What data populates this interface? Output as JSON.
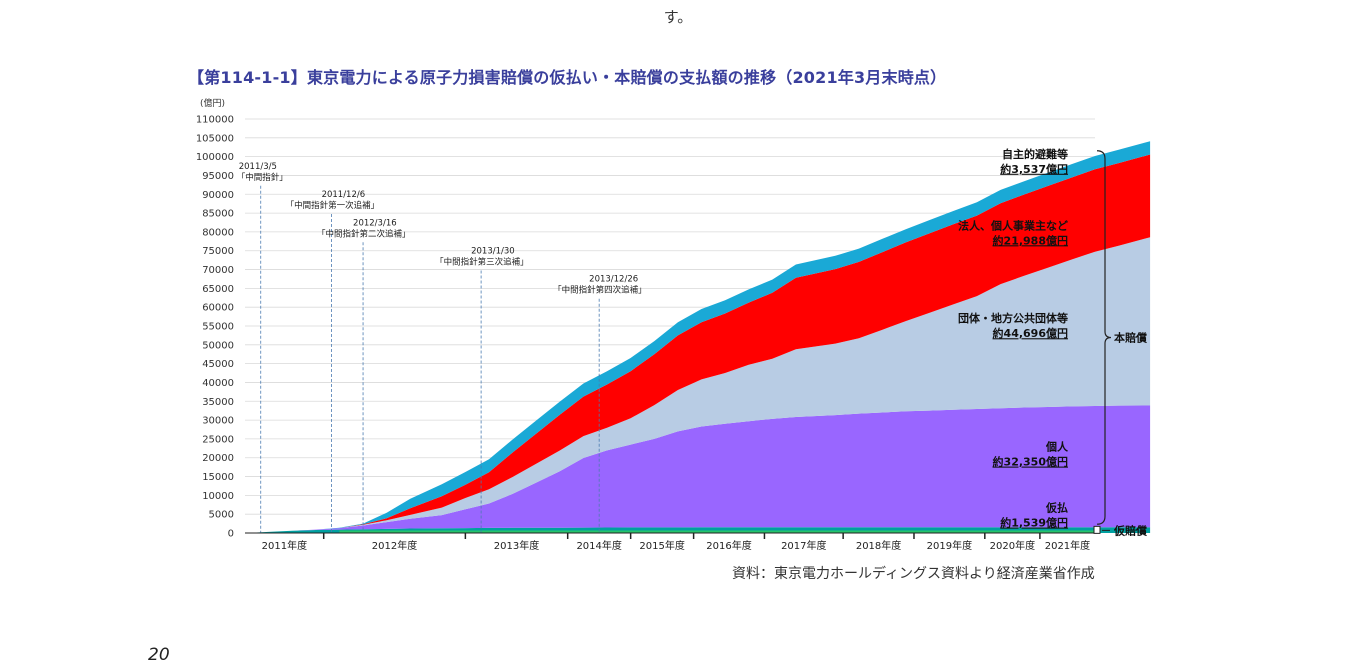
{
  "page": {
    "top_text": "す。",
    "figure_title": "【第114-1-1】東京電力による原子力損害賠償の仮払い・本賠償の支払額の推移（2021年3月末時点）",
    "source": "資料：東京電力ホールディングス資料より経済産業省作成",
    "page_number": "20"
  },
  "chart_data": {
    "type": "area",
    "stacked": true,
    "unit_label": "(億円)",
    "ylim": [
      0,
      110000
    ],
    "y_ticks": [
      0,
      5000,
      10000,
      15000,
      20000,
      25000,
      30000,
      35000,
      40000,
      45000,
      50000,
      55000,
      60000,
      65000,
      70000,
      75000,
      80000,
      85000,
      90000,
      95000,
      100000,
      105000,
      110000
    ],
    "x_periods": [
      {
        "label": "2011年度",
        "weight": 1.0
      },
      {
        "label": "2012年度",
        "weight": 1.8
      },
      {
        "label": "2013年度",
        "weight": 1.3
      },
      {
        "label": "2014年度",
        "weight": 0.8
      },
      {
        "label": "2015年度",
        "weight": 0.8
      },
      {
        "label": "2016年度",
        "weight": 0.9
      },
      {
        "label": "2017年度",
        "weight": 1.0
      },
      {
        "label": "2018年度",
        "weight": 0.9
      },
      {
        "label": "2019年度",
        "weight": 0.9
      },
      {
        "label": "2020年度",
        "weight": 0.7
      },
      {
        "label": "2021年度",
        "weight": 0.7
      }
    ],
    "x_points": [
      0,
      0.3,
      0.6,
      0.9,
      1.2,
      1.5,
      1.8,
      2.1,
      2.5,
      2.8,
      3.1,
      3.4,
      3.7,
      4.0,
      4.3,
      4.6,
      4.9,
      5.2,
      5.5,
      5.8,
      6.1,
      6.4,
      6.7,
      7.0,
      7.5,
      7.8,
      8.1,
      8.4,
      8.7,
      9.0,
      9.3,
      9.6,
      9.9,
      10.2,
      10.5,
      10.8,
      11.1,
      11.5
    ],
    "series": [
      {
        "name": "仮払",
        "color": "#00a0a0",
        "values": [
          0,
          300,
          600,
          800,
          900,
          1000,
          1100,
          1200,
          1250,
          1300,
          1350,
          1380,
          1400,
          1420,
          1440,
          1460,
          1480,
          1490,
          1500,
          1505,
          1510,
          1515,
          1520,
          1522,
          1525,
          1527,
          1529,
          1530,
          1532,
          1534,
          1535,
          1536,
          1537,
          1538,
          1539,
          1539,
          1539,
          1539
        ]
      },
      {
        "name": "個人",
        "color": "#9966ff",
        "values": [
          0,
          0,
          0,
          100,
          400,
          1000,
          1800,
          2600,
          3500,
          5000,
          6500,
          9000,
          12000,
          15000,
          18500,
          20500,
          22000,
          23500,
          25500,
          26800,
          27500,
          28200,
          28800,
          29300,
          29800,
          30200,
          30500,
          30800,
          31000,
          31200,
          31400,
          31600,
          31800,
          31950,
          32100,
          32200,
          32300,
          32350
        ]
      },
      {
        "name": "団体・地方公共団体等",
        "color": "#b8cce4",
        "values": [
          0,
          0,
          0,
          0,
          0,
          200,
          500,
          1000,
          2000,
          3000,
          3800,
          4500,
          5000,
          5500,
          5800,
          6000,
          7000,
          9000,
          11000,
          12500,
          13500,
          15000,
          16000,
          18000,
          19000,
          20000,
          22000,
          24000,
          26000,
          28000,
          30000,
          33000,
          35000,
          37000,
          39000,
          41000,
          42500,
          44696
        ]
      },
      {
        "name": "法人、個人事業主など",
        "color": "#ff0000",
        "values": [
          0,
          0,
          0,
          0,
          0,
          100,
          500,
          1800,
          3000,
          3500,
          4500,
          6500,
          8000,
          9500,
          10500,
          11500,
          12500,
          13500,
          14500,
          15200,
          15800,
          16500,
          17500,
          19000,
          19800,
          20300,
          20600,
          20900,
          21100,
          21300,
          21400,
          21500,
          21600,
          21700,
          21800,
          21900,
          21950,
          21988
        ]
      },
      {
        "name": "自主的避難等",
        "color": "#1aa9d6",
        "values": [
          0,
          0,
          0,
          0,
          100,
          200,
          1500,
          2500,
          3200,
          3400,
          3450,
          3470,
          3480,
          3490,
          3495,
          3500,
          3505,
          3510,
          3512,
          3514,
          3516,
          3518,
          3520,
          3522,
          3524,
          3526,
          3528,
          3529,
          3530,
          3531,
          3532,
          3533,
          3534,
          3535,
          3536,
          3536,
          3537,
          3537
        ]
      }
    ],
    "series_labels": [
      {
        "name": "自主的避難等",
        "amount": "約3,537億円",
        "y": 99700
      },
      {
        "name": "法人、個人事業主など",
        "amount": "約21,988億円",
        "y": 80700
      },
      {
        "name": "団体・地方公共団体等",
        "amount": "約44,696億円",
        "y": 56000
      },
      {
        "name": "個人",
        "amount": "約32,350億円",
        "y": 21900
      },
      {
        "name": "仮払",
        "amount": "約1,539億円",
        "y": 5700
      }
    ],
    "annotations": [
      {
        "date": "2011/3/5",
        "text": "「中間指針」",
        "x": 0.2,
        "label_y": 96500
      },
      {
        "date": "2011/12/6",
        "text": "「中間指針第一次追補」",
        "x": 1.1,
        "label_y": 89000
      },
      {
        "date": "2012/3/16",
        "text": "「中間指針第二次追補」",
        "x": 1.5,
        "label_y": 81500
      },
      {
        "date": "2013/1/30",
        "text": "「中間指針第三次追補」",
        "x": 3.0,
        "label_y": 74000
      },
      {
        "date": "2013/12/26",
        "text": "「中間指針第四次追補」",
        "x": 4.5,
        "label_y": 66500
      }
    ],
    "brackets": [
      {
        "label": "本賠償",
        "from": 1539,
        "to": 101560
      },
      {
        "label": "仮賠償",
        "from": 0,
        "to": 1539
      }
    ]
  }
}
